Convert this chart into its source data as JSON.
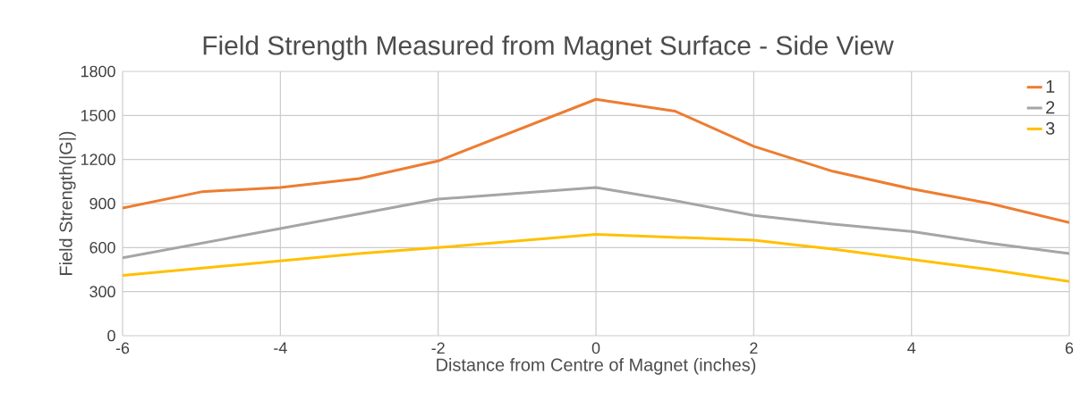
{
  "chart_data": {
    "type": "line",
    "title": "Field Strength Measured from Magnet Surface - Side View",
    "xlabel": "Distance from Centre of Magnet (inches)",
    "ylabel": "Field Strength(|G|)",
    "x": [
      -6,
      -5,
      -4,
      -3,
      -2,
      0,
      1,
      2,
      3,
      4,
      5,
      6
    ],
    "series": [
      {
        "name": "1",
        "color": "#ed7d31",
        "values": [
          870,
          980,
          1010,
          1070,
          1190,
          1610,
          1530,
          1290,
          1120,
          1000,
          900,
          770
        ]
      },
      {
        "name": "2",
        "color": "#a5a5a5",
        "values": [
          530,
          630,
          730,
          830,
          930,
          1010,
          920,
          820,
          760,
          710,
          630,
          560
        ]
      },
      {
        "name": "3",
        "color": "#ffc000",
        "values": [
          410,
          460,
          510,
          560,
          600,
          690,
          670,
          650,
          590,
          520,
          450,
          370
        ]
      }
    ],
    "xlim": [
      -6,
      6
    ],
    "xticks": [
      -6,
      -4,
      -2,
      0,
      2,
      4,
      6
    ],
    "ylim": [
      0,
      1800
    ],
    "yticks": [
      0,
      300,
      600,
      900,
      1200,
      1500,
      1800
    ],
    "grid": true,
    "legend": "top right",
    "marker": "none",
    "line_style": "solid"
  }
}
